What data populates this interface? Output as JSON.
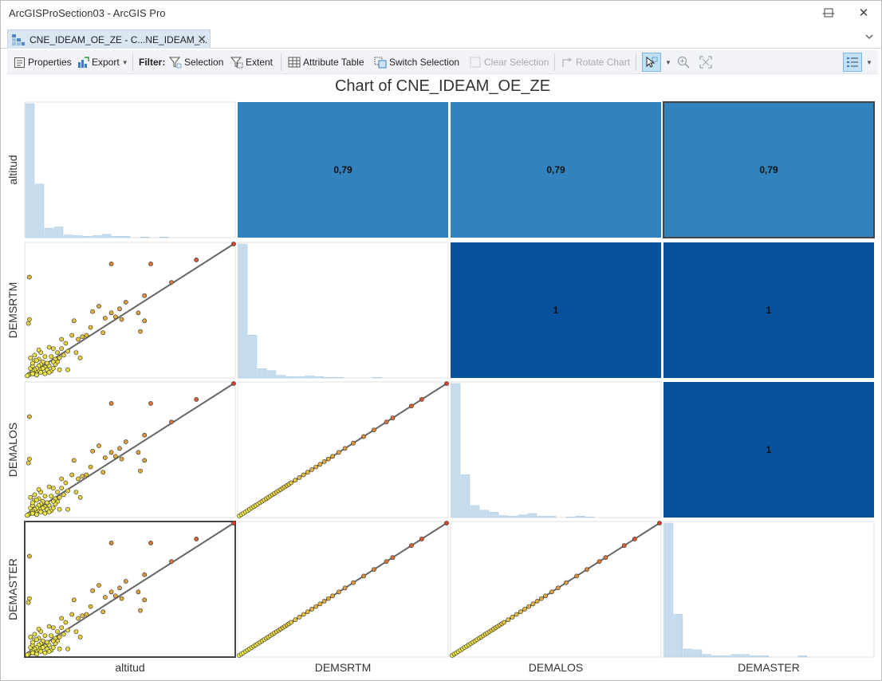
{
  "window": {
    "title": "ArcGISProSection03 - ArcGIS Pro",
    "minimize_glyph": "—",
    "maximize_glyph": "☐",
    "close_glyph": "✕"
  },
  "tab": {
    "label": "CNE_IDEAM_OE_ZE  - C...NE_IDEAM_...",
    "icon": "chart-icon",
    "close_glyph": "✕",
    "overflow_glyph": "⌄"
  },
  "toolbar": {
    "properties": "Properties",
    "export": "Export",
    "filter_label": "Filter:",
    "selection": "Selection",
    "extent": "Extent",
    "attribute_table": "Attribute Table",
    "switch_selection": "Switch Selection",
    "clear_selection": "Clear Selection",
    "rotate_chart": "Rotate Chart"
  },
  "chart_data": {
    "type": "scatter",
    "title": "Chart of CNE_IDEAM_OE_ZE",
    "variables": [
      "altitud",
      "DEMSRTM",
      "DEMALOS",
      "DEMASTER"
    ],
    "correlations": [
      [
        null,
        "0,79",
        "0,79",
        "0,79"
      ],
      [
        null,
        null,
        "1",
        "1"
      ],
      [
        null,
        null,
        null,
        "1"
      ],
      [
        null,
        null,
        null,
        null
      ]
    ],
    "heat_colors": {
      "0,79": "#3182bd",
      "1": "#08519c"
    },
    "histogram_color": "#c6dcec",
    "histograms": [
      [
        1.0,
        0.4,
        0.07,
        0.08,
        0.02,
        0.015,
        0.01,
        0.015,
        0.025,
        0.01,
        0.01,
        0.0,
        0.005,
        0.0,
        0.005
      ],
      [
        1.0,
        0.32,
        0.07,
        0.055,
        0.02,
        0.01,
        0.01,
        0.015,
        0.01,
        0.005,
        0.005,
        0.0,
        0.0,
        0.0,
        0.005
      ],
      [
        1.0,
        0.32,
        0.09,
        0.055,
        0.04,
        0.015,
        0.01,
        0.02,
        0.03,
        0.01,
        0.01,
        0.0,
        0.005,
        0.01,
        0.005
      ],
      [
        1.0,
        0.32,
        0.06,
        0.055,
        0.02,
        0.01,
        0.01,
        0.02,
        0.02,
        0.01,
        0.01,
        0.0,
        0.0,
        0.0,
        0.01
      ]
    ],
    "scatter_altitud_vs_dem": [
      [
        1.0,
        1.0
      ],
      [
        0.82,
        0.88
      ],
      [
        0.7,
        0.71
      ],
      [
        0.6,
        0.85
      ],
      [
        0.57,
        0.61
      ],
      [
        0.55,
        0.34
      ],
      [
        0.57,
        0.42
      ],
      [
        0.46,
        0.43
      ],
      [
        0.43,
        0.45
      ],
      [
        0.41,
        0.48
      ],
      [
        0.45,
        0.51
      ],
      [
        0.48,
        0.56
      ],
      [
        0.54,
        0.48
      ],
      [
        0.41,
        0.85
      ],
      [
        0.38,
        0.44
      ],
      [
        0.35,
        0.53
      ],
      [
        0.32,
        0.49
      ],
      [
        0.31,
        0.37
      ],
      [
        0.29,
        0.31
      ],
      [
        0.27,
        0.3
      ],
      [
        0.25,
        0.28
      ],
      [
        0.22,
        0.31
      ],
      [
        0.19,
        0.25
      ],
      [
        0.17,
        0.21
      ],
      [
        0.15,
        0.11
      ],
      [
        0.14,
        0.09
      ],
      [
        0.23,
        0.42
      ],
      [
        0.37,
        0.33
      ],
      [
        0.2,
        0.19
      ],
      [
        0.18,
        0.16
      ],
      [
        0.16,
        0.14
      ],
      [
        0.14,
        0.13
      ],
      [
        0.13,
        0.11
      ],
      [
        0.12,
        0.15
      ],
      [
        0.11,
        0.08
      ],
      [
        0.1,
        0.1
      ],
      [
        0.09,
        0.07
      ],
      [
        0.08,
        0.11
      ],
      [
        0.075,
        0.06
      ],
      [
        0.07,
        0.09
      ],
      [
        0.065,
        0.05
      ],
      [
        0.06,
        0.08
      ],
      [
        0.055,
        0.04
      ],
      [
        0.05,
        0.06
      ],
      [
        0.045,
        0.03
      ],
      [
        0.04,
        0.05
      ],
      [
        0.035,
        0.02
      ],
      [
        0.03,
        0.04
      ],
      [
        0.025,
        0.03
      ],
      [
        0.02,
        0.02
      ],
      [
        0.015,
        0.015
      ],
      [
        0.01,
        0.01
      ],
      [
        0.005,
        0.005
      ],
      [
        0.02,
        0.06
      ],
      [
        0.03,
        0.08
      ],
      [
        0.04,
        0.12
      ],
      [
        0.06,
        0.13
      ],
      [
        0.08,
        0.06
      ],
      [
        0.1,
        0.05
      ],
      [
        0.12,
        0.04
      ],
      [
        0.13,
        0.21
      ],
      [
        0.15,
        0.18
      ],
      [
        0.09,
        0.15
      ],
      [
        0.07,
        0.18
      ],
      [
        0.05,
        0.12
      ],
      [
        0.03,
        0.1
      ],
      [
        0.02,
        0.14
      ],
      [
        0.015,
        0.75
      ],
      [
        0.01,
        0.4
      ],
      [
        0.015,
        0.43
      ],
      [
        0.2,
        0.05
      ],
      [
        0.24,
        0.18
      ],
      [
        0.26,
        0.14
      ],
      [
        0.11,
        0.22
      ],
      [
        0.17,
        0.28
      ],
      [
        0.06,
        0.2
      ],
      [
        0.04,
        0.16
      ],
      [
        0.03,
        0.02
      ],
      [
        0.05,
        0.01
      ],
      [
        0.07,
        0.03
      ],
      [
        0.09,
        0.02
      ],
      [
        0.11,
        0.03
      ],
      [
        0.13,
        0.06
      ],
      [
        0.16,
        0.05
      ]
    ],
    "scatter_dem_vs_dem": [
      [
        0.0,
        0.0
      ],
      [
        0.01,
        0.01
      ],
      [
        0.02,
        0.02
      ],
      [
        0.03,
        0.03
      ],
      [
        0.04,
        0.04
      ],
      [
        0.05,
        0.05
      ],
      [
        0.06,
        0.06
      ],
      [
        0.07,
        0.07
      ],
      [
        0.08,
        0.08
      ],
      [
        0.09,
        0.09
      ],
      [
        0.1,
        0.1
      ],
      [
        0.11,
        0.11
      ],
      [
        0.12,
        0.12
      ],
      [
        0.13,
        0.13
      ],
      [
        0.14,
        0.14
      ],
      [
        0.15,
        0.15
      ],
      [
        0.16,
        0.16
      ],
      [
        0.17,
        0.17
      ],
      [
        0.18,
        0.18
      ],
      [
        0.19,
        0.19
      ],
      [
        0.2,
        0.2
      ],
      [
        0.21,
        0.21
      ],
      [
        0.22,
        0.22
      ],
      [
        0.23,
        0.23
      ],
      [
        0.24,
        0.24
      ],
      [
        0.25,
        0.25
      ],
      [
        0.27,
        0.27
      ],
      [
        0.29,
        0.29
      ],
      [
        0.31,
        0.31
      ],
      [
        0.33,
        0.33
      ],
      [
        0.35,
        0.35
      ],
      [
        0.37,
        0.37
      ],
      [
        0.39,
        0.39
      ],
      [
        0.41,
        0.41
      ],
      [
        0.43,
        0.43
      ],
      [
        0.45,
        0.45
      ],
      [
        0.48,
        0.48
      ],
      [
        0.51,
        0.51
      ],
      [
        0.55,
        0.55
      ],
      [
        0.6,
        0.6
      ],
      [
        0.65,
        0.65
      ],
      [
        0.71,
        0.71
      ],
      [
        0.74,
        0.74
      ],
      [
        0.83,
        0.83
      ],
      [
        0.88,
        0.88
      ],
      [
        1.0,
        1.0
      ]
    ],
    "point_color_low": "#eeee44",
    "point_color_high": "#d84030",
    "trend_line_color": "#666666"
  }
}
